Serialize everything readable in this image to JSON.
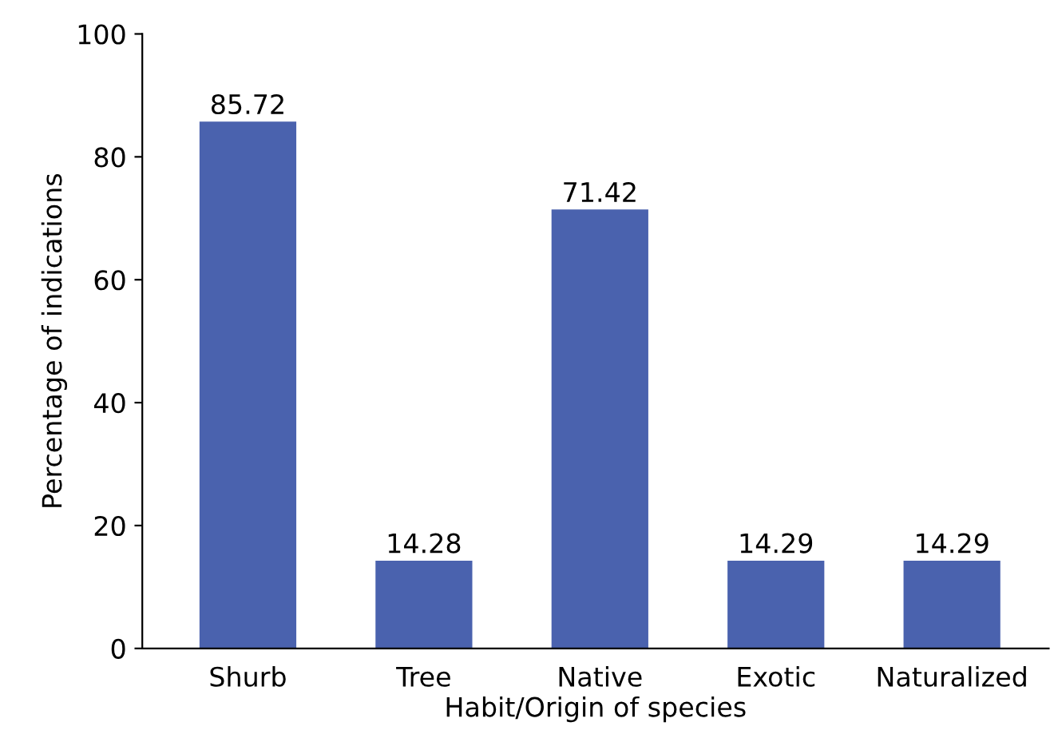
{
  "chart_data": {
    "type": "bar",
    "xlabel": "Habit/Origin of species",
    "ylabel": "Percentage of indications",
    "categories": [
      "Shurb",
      "Tree",
      "Native",
      "Exotic",
      "Naturalized"
    ],
    "values": [
      85.72,
      14.28,
      71.42,
      14.29,
      14.29
    ],
    "color": "#4a62ae",
    "ylim": [
      0,
      100
    ],
    "yticks": [
      0,
      20,
      40,
      60,
      80,
      100
    ],
    "grid": false,
    "data_labels": true
  }
}
